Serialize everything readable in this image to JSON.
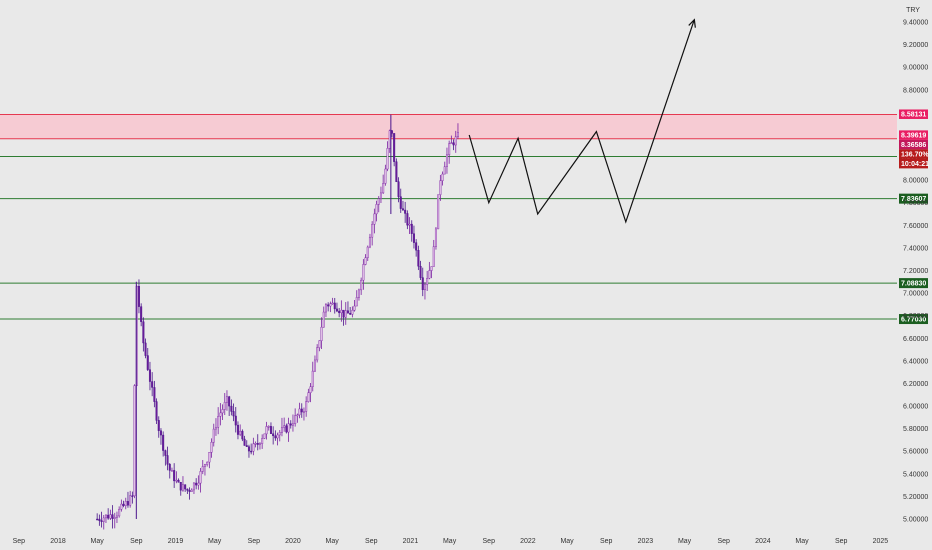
{
  "currency_label": "TRY",
  "chart_data": {
    "type": "candlestick",
    "ylim": [
      4.95,
      9.5
    ],
    "y_axis_ticks": [
      "9.40000",
      "9.20000",
      "9.00000",
      "8.80000",
      "8.60000",
      "8.40000",
      "8.20000",
      "8.00000",
      "7.80000",
      "7.60000",
      "7.40000",
      "7.20000",
      "7.00000",
      "6.80000",
      "6.60000",
      "6.40000",
      "6.20000",
      "6.00000",
      "5.80000",
      "5.60000",
      "5.40000",
      "5.20000",
      "5.00000"
    ],
    "x_axis_ticks": [
      "Sep",
      "2018",
      "May",
      "Sep",
      "2019",
      "May",
      "Sep",
      "2020",
      "May",
      "Sep",
      "2021",
      "May",
      "Sep",
      "2022",
      "May",
      "Sep",
      "2023",
      "May",
      "Sep",
      "2024",
      "May",
      "Sep",
      "2025"
    ],
    "resistance_zone": {
      "low": 8.36586,
      "high": 8.58131
    },
    "levels": [
      {
        "value": 8.20941,
        "label": "8.20941"
      },
      {
        "value": 7.83607,
        "label": "7.83607"
      },
      {
        "value": 7.0883,
        "label": "7.08830"
      },
      {
        "value": 6.7703,
        "label": "6.77030"
      }
    ],
    "price_tags": [
      {
        "label": "8.58131",
        "value": 8.58131,
        "color": "#e91e63"
      },
      {
        "label": "8.39619",
        "value": 8.39619,
        "color": "#e91e63"
      },
      {
        "label": "8.36586",
        "value": 8.36586,
        "color": "#c2185b"
      },
      {
        "label": "136.70%",
        "value": 8.29,
        "color": "#b71c1c"
      },
      {
        "label": "10:04:21",
        "value": 8.24,
        "color": "#b71c1c"
      }
    ],
    "price_path": [
      [
        "2018-05",
        5.0
      ],
      [
        "2018-07",
        5.05
      ],
      [
        "2018-08-20",
        5.2
      ],
      [
        "2018-09-01",
        7.1
      ],
      [
        "2018-09-20",
        6.6
      ],
      [
        "2018-10-15",
        6.2
      ],
      [
        "2018-11-10",
        5.8
      ],
      [
        "2018-12-10",
        5.45
      ],
      [
        "2019-01-10",
        5.3
      ],
      [
        "2019-02-10",
        5.25
      ],
      [
        "2019-03-10",
        5.35
      ],
      [
        "2019-04-10",
        5.55
      ],
      [
        "2019-05-10",
        5.9
      ],
      [
        "2019-06-10",
        6.05
      ],
      [
        "2019-07-10",
        5.8
      ],
      [
        "2019-08-10",
        5.6
      ],
      [
        "2019-09-10",
        5.65
      ],
      [
        "2019-10-10",
        5.8
      ],
      [
        "2019-11-10",
        5.75
      ],
      [
        "2019-12-10",
        5.8
      ],
      [
        "2020-01-10",
        5.9
      ],
      [
        "2020-02-10",
        6.0
      ],
      [
        "2020-03-10",
        6.4
      ],
      [
        "2020-04-10",
        6.9
      ],
      [
        "2020-05-10",
        6.9
      ],
      [
        "2020-06-10",
        6.8
      ],
      [
        "2020-07-10",
        6.85
      ],
      [
        "2020-08-10",
        7.3
      ],
      [
        "2020-09-10",
        7.7
      ],
      [
        "2020-10-10",
        8.0
      ],
      [
        "2020-11-01",
        8.5
      ],
      [
        "2020-11-20",
        7.9
      ],
      [
        "2020-12-10",
        7.7
      ],
      [
        "2021-01-10",
        7.5
      ],
      [
        "2021-02-10",
        7.05
      ],
      [
        "2021-03-10",
        7.3
      ],
      [
        "2021-04-01",
        8.0
      ],
      [
        "2021-05-01",
        8.3
      ],
      [
        "2021-06-01",
        8.4
      ]
    ],
    "projection_path": [
      [
        "2021-07-01",
        8.4
      ],
      [
        "2021-09-01",
        7.8
      ],
      [
        "2021-12-01",
        8.37
      ],
      [
        "2022-02-01",
        7.7
      ],
      [
        "2022-08-01",
        8.43
      ],
      [
        "2022-11-01",
        7.63
      ],
      [
        "2023-06-01",
        9.42
      ]
    ]
  }
}
